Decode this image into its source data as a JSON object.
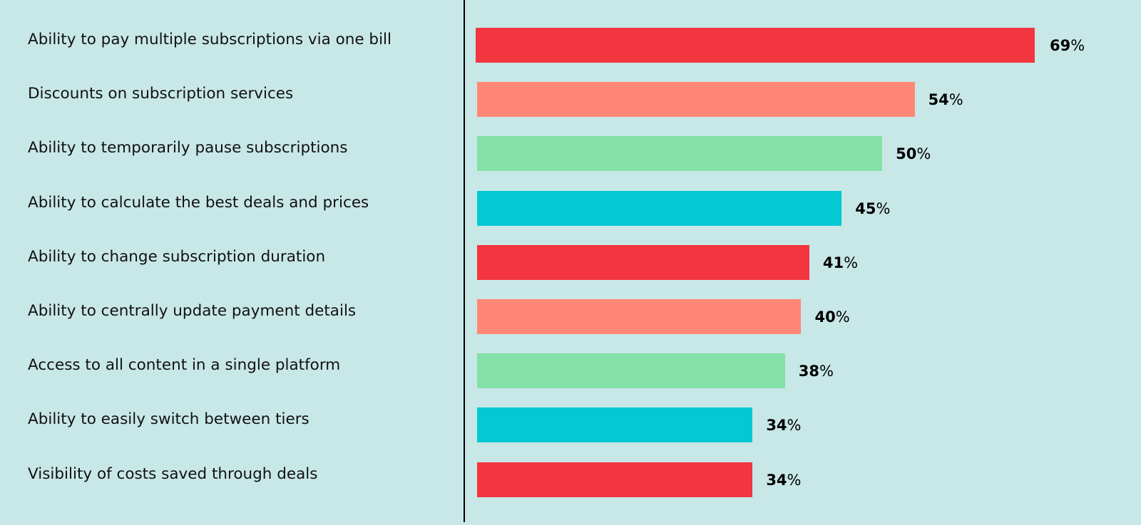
{
  "chart_data": {
    "type": "bar",
    "orientation": "horizontal",
    "categories": [
      "Ability to pay multiple subscriptions via one bill",
      "Discounts on subscription services",
      "Ability to temporarily pause subscriptions",
      "Ability to calculate the best deals and prices",
      "Ability to change subscription duration",
      "Ability to centrally update payment details",
      "Access to all content in a single platform",
      "Ability to easily switch between tiers",
      "Visibility of costs saved through deals"
    ],
    "values": [
      69,
      54,
      50,
      45,
      41,
      40,
      38,
      34,
      34
    ],
    "unit": "%",
    "colors": [
      "#F2353F",
      "#FF8775",
      "#84E1A8",
      "#04C8D4",
      "#F2353F",
      "#FF8775",
      "#84E1A8",
      "#04C8D4",
      "#F2353F"
    ],
    "xlim": [
      0,
      69
    ],
    "grid": false,
    "title": "",
    "xlabel": "",
    "ylabel": ""
  }
}
